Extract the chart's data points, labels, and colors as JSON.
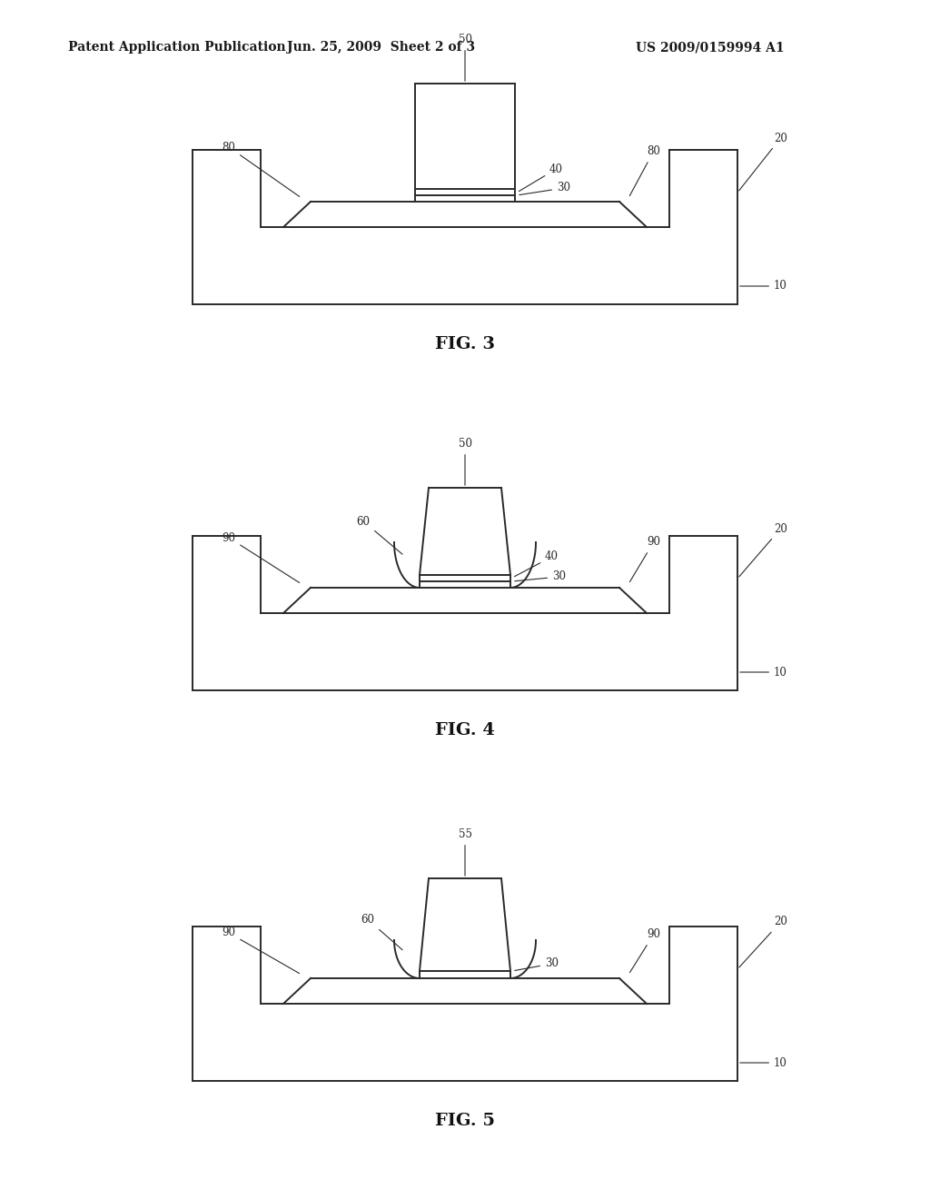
{
  "bg_color": "#ffffff",
  "line_color": "#2a2a2a",
  "header_left": "Patent Application Publication",
  "header_center": "Jun. 25, 2009  Sheet 2 of 3",
  "header_right": "US 2009/0159994 A1",
  "fig_labels": [
    "FIG. 3",
    "FIG. 4",
    "FIG. 5"
  ]
}
